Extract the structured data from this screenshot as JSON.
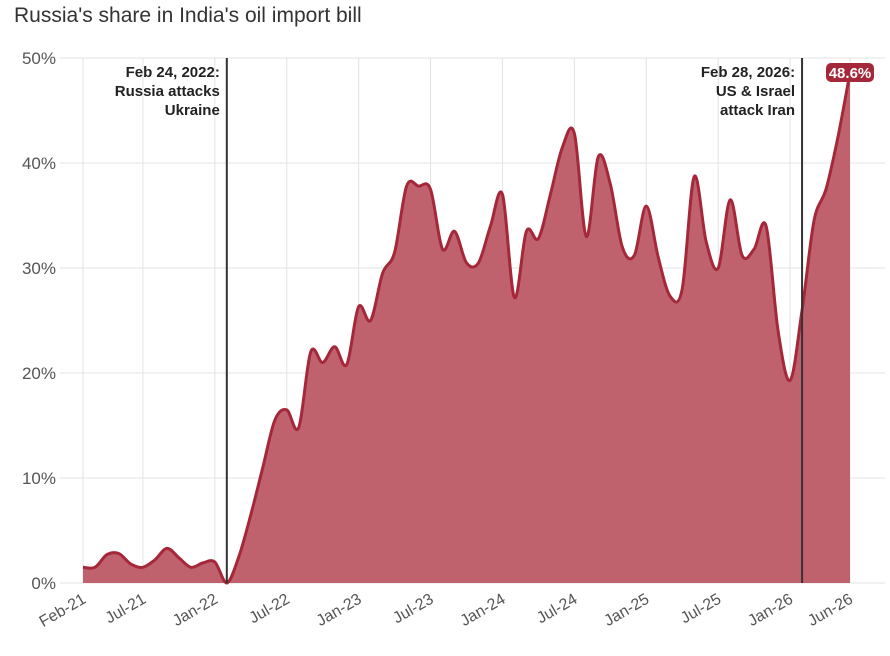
{
  "chart_data": {
    "type": "area",
    "title": "Russia's share in India's oil import bill",
    "xlabel": "",
    "ylabel": "",
    "ylim": [
      0,
      50
    ],
    "y_ticks": [
      "0%",
      "10%",
      "20%",
      "30%",
      "40%",
      "50%"
    ],
    "y_tick_values": [
      0,
      10,
      20,
      30,
      40,
      50
    ],
    "x_tick_labels": [
      "Feb-21",
      "Jul-21",
      "Jan-22",
      "Jul-22",
      "Jan-23",
      "Jul-23",
      "Jan-24",
      "Jul-24",
      "Jan-25",
      "Jul-25",
      "Jan-26",
      "Jun-26"
    ],
    "x_tick_dates": [
      "2021-02",
      "2021-07",
      "2022-01",
      "2022-07",
      "2023-01",
      "2023-07",
      "2024-01",
      "2024-07",
      "2025-01",
      "2025-07",
      "2026-01",
      "2026-06"
    ],
    "grid": true,
    "colors": {
      "line": "#a5283a",
      "fill": "#c0626e",
      "annotation_line": "#333333"
    },
    "series": [
      {
        "values": [
          [
            "2021-02",
            1.5
          ],
          [
            "2021-03",
            1.5
          ],
          [
            "2021-04",
            2.7
          ],
          [
            "2021-05",
            2.8
          ],
          [
            "2021-06",
            1.8
          ],
          [
            "2021-07",
            1.5
          ],
          [
            "2021-08",
            2.2
          ],
          [
            "2021-09",
            3.3
          ],
          [
            "2021-10",
            2.4
          ],
          [
            "2021-11",
            1.5
          ],
          [
            "2021-12",
            1.9
          ],
          [
            "2022-01",
            2.0
          ],
          [
            "2022-02",
            0.0
          ],
          [
            "2022-03",
            2.5
          ],
          [
            "2022-04",
            6.5
          ],
          [
            "2022-05",
            11.0
          ],
          [
            "2022-06",
            15.5
          ],
          [
            "2022-07",
            16.5
          ],
          [
            "2022-08",
            14.8
          ],
          [
            "2022-09",
            22.0
          ],
          [
            "2022-10",
            21.0
          ],
          [
            "2022-11",
            22.5
          ],
          [
            "2022-12",
            20.8
          ],
          [
            "2023-01",
            26.3
          ],
          [
            "2023-02",
            25.0
          ],
          [
            "2023-03",
            29.5
          ],
          [
            "2023-04",
            31.5
          ],
          [
            "2023-05",
            37.8
          ],
          [
            "2023-06",
            37.8
          ],
          [
            "2023-07",
            37.5
          ],
          [
            "2023-08",
            31.8
          ],
          [
            "2023-09",
            33.5
          ],
          [
            "2023-10",
            30.5
          ],
          [
            "2023-11",
            30.5
          ],
          [
            "2023-12",
            34.0
          ],
          [
            "2024-01",
            37.0
          ],
          [
            "2024-02",
            27.2
          ],
          [
            "2024-03",
            33.5
          ],
          [
            "2024-04",
            32.8
          ],
          [
            "2024-05",
            37.0
          ],
          [
            "2024-06",
            41.5
          ],
          [
            "2024-07",
            42.8
          ],
          [
            "2024-08",
            33.0
          ],
          [
            "2024-09",
            40.6
          ],
          [
            "2024-10",
            38.0
          ],
          [
            "2024-11",
            32.0
          ],
          [
            "2024-12",
            31.2
          ],
          [
            "2025-01",
            35.9
          ],
          [
            "2025-02",
            31.0
          ],
          [
            "2025-03",
            27.3
          ],
          [
            "2025-04",
            28.0
          ],
          [
            "2025-05",
            38.7
          ],
          [
            "2025-06",
            32.5
          ],
          [
            "2025-07",
            30.0
          ],
          [
            "2025-08",
            36.5
          ],
          [
            "2025-09",
            31.2
          ],
          [
            "2025-10",
            31.8
          ],
          [
            "2025-11",
            34.0
          ],
          [
            "2025-12",
            24.0
          ],
          [
            "2026-01",
            19.3
          ],
          [
            "2026-02",
            26.0
          ],
          [
            "2026-03",
            34.5
          ],
          [
            "2026-04",
            37.5
          ],
          [
            "2026-05",
            42.5
          ],
          [
            "2026-06",
            48.6
          ]
        ]
      }
    ],
    "annotations": [
      {
        "date": "2022-02",
        "lines": [
          "Feb 24, 2022:",
          "Russia attacks",
          "Ukraine"
        ]
      },
      {
        "date": "2026-02",
        "lines": [
          "Feb 28, 2026:",
          "US & Israel",
          "attack Iran"
        ]
      }
    ],
    "end_label": "48.6%"
  }
}
